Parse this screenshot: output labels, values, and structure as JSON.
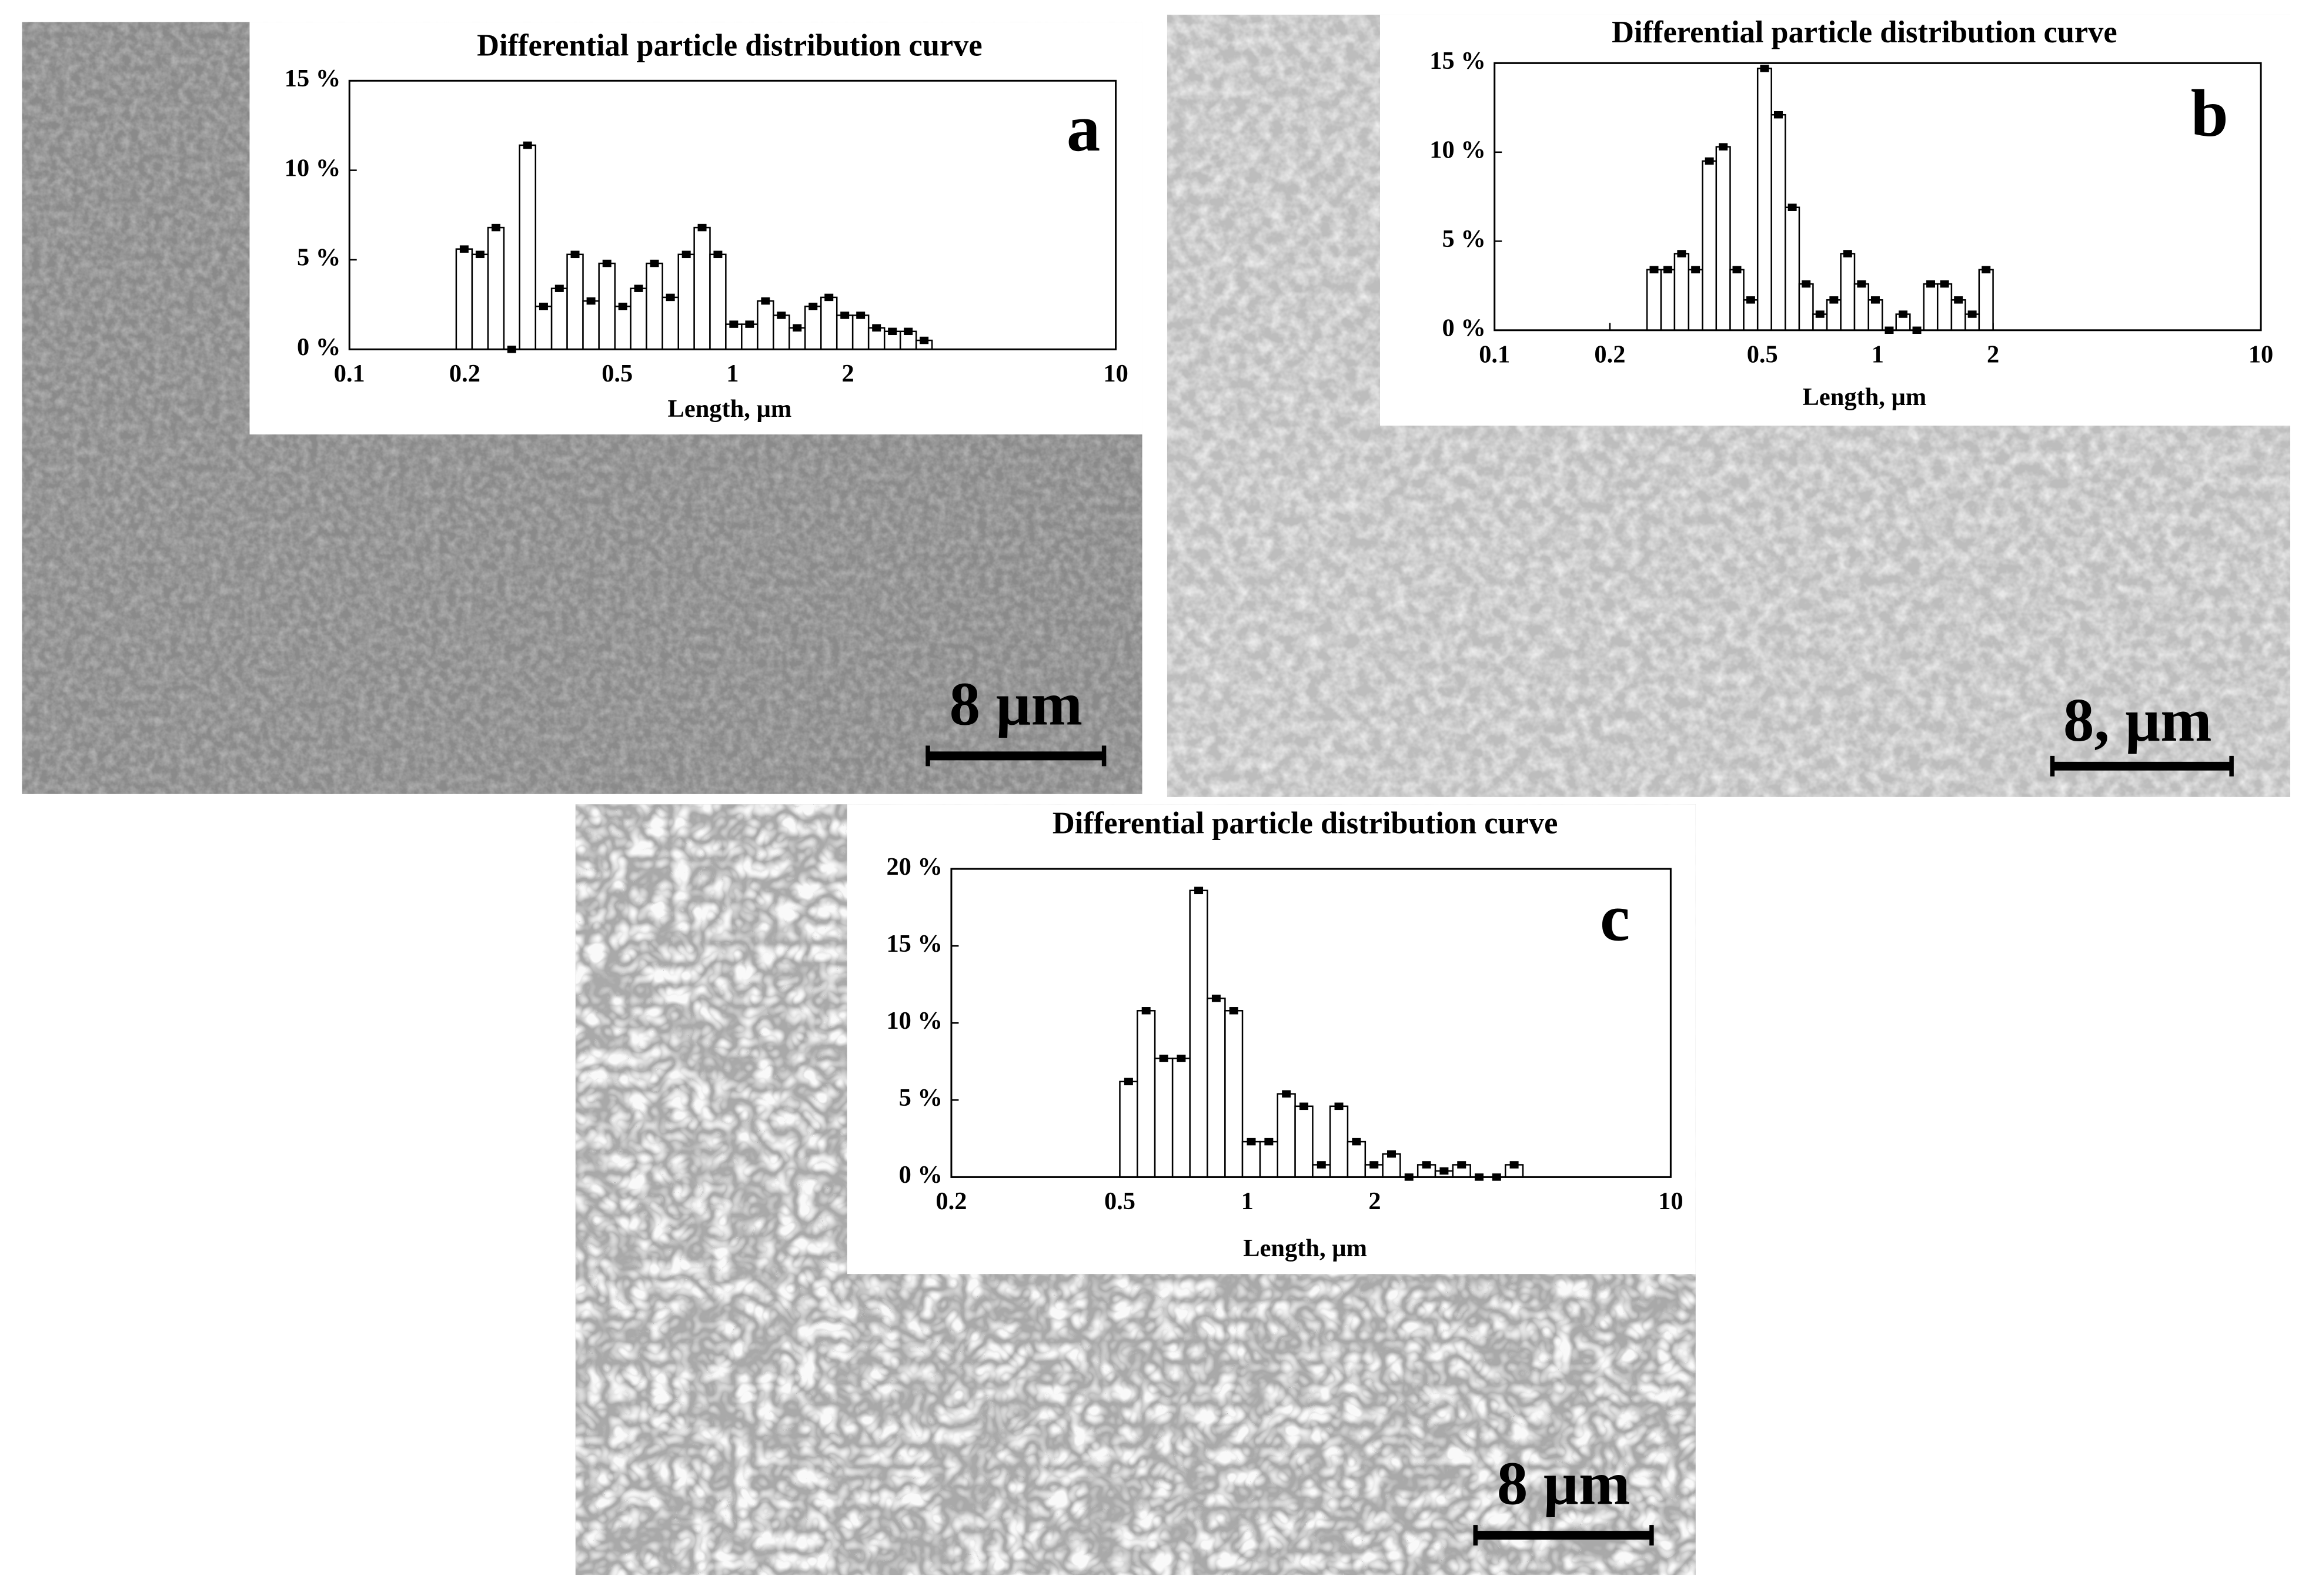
{
  "chart_data": [
    {
      "type": "histogram",
      "label": "a",
      "title": "Differential particle distribution curve",
      "x_label": "Length, µm",
      "scale_bar_label": "8 µm",
      "log_x": true,
      "color": "#ffffff",
      "edge_color": "#000000",
      "bins": [
        0.19,
        0.209,
        0.23,
        0.253,
        0.278,
        0.306,
        0.337,
        0.37,
        0.407,
        0.448,
        0.493,
        0.542,
        0.596,
        0.656,
        0.722,
        0.794,
        0.873,
        0.96,
        1.056,
        1.162,
        1.278,
        1.406,
        1.546,
        1.701,
        1.871,
        2.058,
        2.264,
        2.491,
        2.74,
        3.014,
        3.315
      ],
      "values": [
        5.6,
        5.3,
        6.8,
        0,
        11.4,
        2.4,
        3.4,
        5.3,
        2.7,
        4.8,
        2.4,
        3.4,
        4.8,
        2.9,
        5.3,
        6.8,
        5.3,
        1.4,
        1.4,
        2.7,
        1.9,
        1.2,
        2.4,
        2.9,
        1.9,
        1.9,
        1.2,
        1.0,
        1.0,
        0.5
      ],
      "xlim": [
        0.1,
        10
      ],
      "ylim": [
        0,
        15
      ],
      "xticks": [
        0.1,
        0.2,
        0.5,
        1,
        2,
        10
      ],
      "yticks": [
        {
          "value": 0,
          "label": "0 %"
        },
        {
          "value": 5,
          "label": "5 %"
        },
        {
          "value": 10,
          "label": "10 %"
        },
        {
          "value": 15,
          "label": "15 %"
        }
      ]
    },
    {
      "type": "histogram",
      "label": "b",
      "title": "Differential particle distribution curve",
      "x_label": "Length, µm",
      "scale_bar_label": "8, µm",
      "log_x": true,
      "color": "#ffffff",
      "edge_color": "#000000",
      "bins": [
        0.25,
        0.272,
        0.295,
        0.321,
        0.349,
        0.379,
        0.412,
        0.447,
        0.486,
        0.528,
        0.574,
        0.624,
        0.678,
        0.737,
        0.801,
        0.87,
        0.946,
        1.028,
        1.117,
        1.214,
        1.319,
        1.433,
        1.558,
        1.693,
        1.839,
        2.0
      ],
      "values": [
        3.4,
        3.4,
        4.3,
        3.4,
        9.5,
        10.3,
        3.4,
        1.7,
        14.7,
        12.1,
        6.9,
        2.6,
        0.9,
        1.7,
        4.3,
        2.6,
        1.7,
        0,
        0.9,
        0,
        2.6,
        2.6,
        1.7,
        0.9,
        3.4
      ],
      "xlim": [
        0.1,
        10
      ],
      "ylim": [
        0,
        15
      ],
      "xticks": [
        0.1,
        0.2,
        0.5,
        1,
        2,
        10
      ],
      "yticks": [
        {
          "value": 0,
          "label": "0 %"
        },
        {
          "value": 5,
          "label": "5 %"
        },
        {
          "value": 10,
          "label": "10 %"
        },
        {
          "value": 15,
          "label": "15 %"
        }
      ]
    },
    {
      "type": "histogram",
      "label": "c",
      "title": "Differential particle distribution curve",
      "x_label": "Length, µm",
      "scale_bar_label": "8 µm",
      "log_x": true,
      "color": "#ffffff",
      "edge_color": "#000000",
      "bins": [
        0.5,
        0.55,
        0.605,
        0.666,
        0.732,
        0.805,
        0.886,
        0.974,
        1.072,
        1.179,
        1.297,
        1.427,
        1.569,
        1.726,
        1.899,
        2.089,
        2.297,
        2.527,
        2.78,
        3.058,
        3.364,
        3.7,
        4.07,
        4.477
      ],
      "values": [
        6.2,
        10.8,
        7.7,
        7.7,
        18.6,
        11.6,
        10.8,
        2.3,
        2.3,
        5.4,
        4.6,
        0.8,
        4.6,
        2.3,
        0.8,
        1.5,
        0,
        0.8,
        0.4,
        0.8,
        0,
        0,
        0.8
      ],
      "xlim": [
        0.2,
        10
      ],
      "ylim": [
        0,
        20
      ],
      "xticks": [
        0.2,
        0.5,
        1,
        2,
        10
      ],
      "yticks": [
        {
          "value": 0,
          "label": "0 %"
        },
        {
          "value": 5,
          "label": "5 %"
        },
        {
          "value": 10,
          "label": "10 %"
        },
        {
          "value": 15,
          "label": "15 %"
        },
        {
          "value": 20,
          "label": "20 %"
        }
      ]
    }
  ]
}
